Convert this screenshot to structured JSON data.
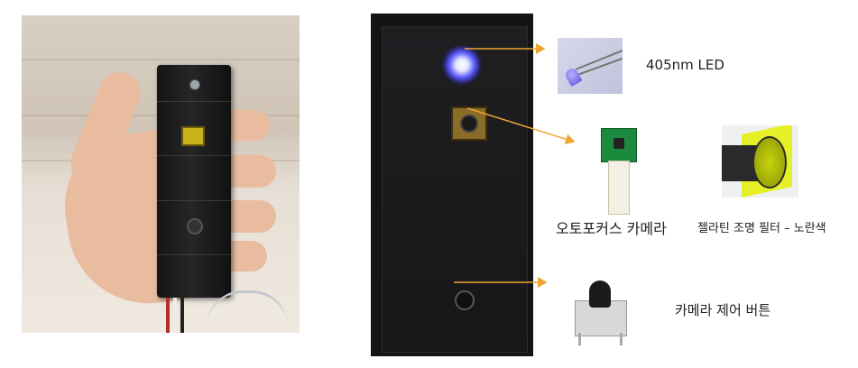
{
  "annotations": {
    "led_label": "405nm LED",
    "camera_label": "오토포커스 카메라",
    "filter_label": "젤라틴 조명 필터 – 노란색",
    "button_label": "카메라 제어 버튼"
  },
  "colors": {
    "arrow": "#f0a531",
    "led_glow": "#5b5cff",
    "filter_yellow": "#e4f01a",
    "pcb_green": "#1c8a3d"
  }
}
